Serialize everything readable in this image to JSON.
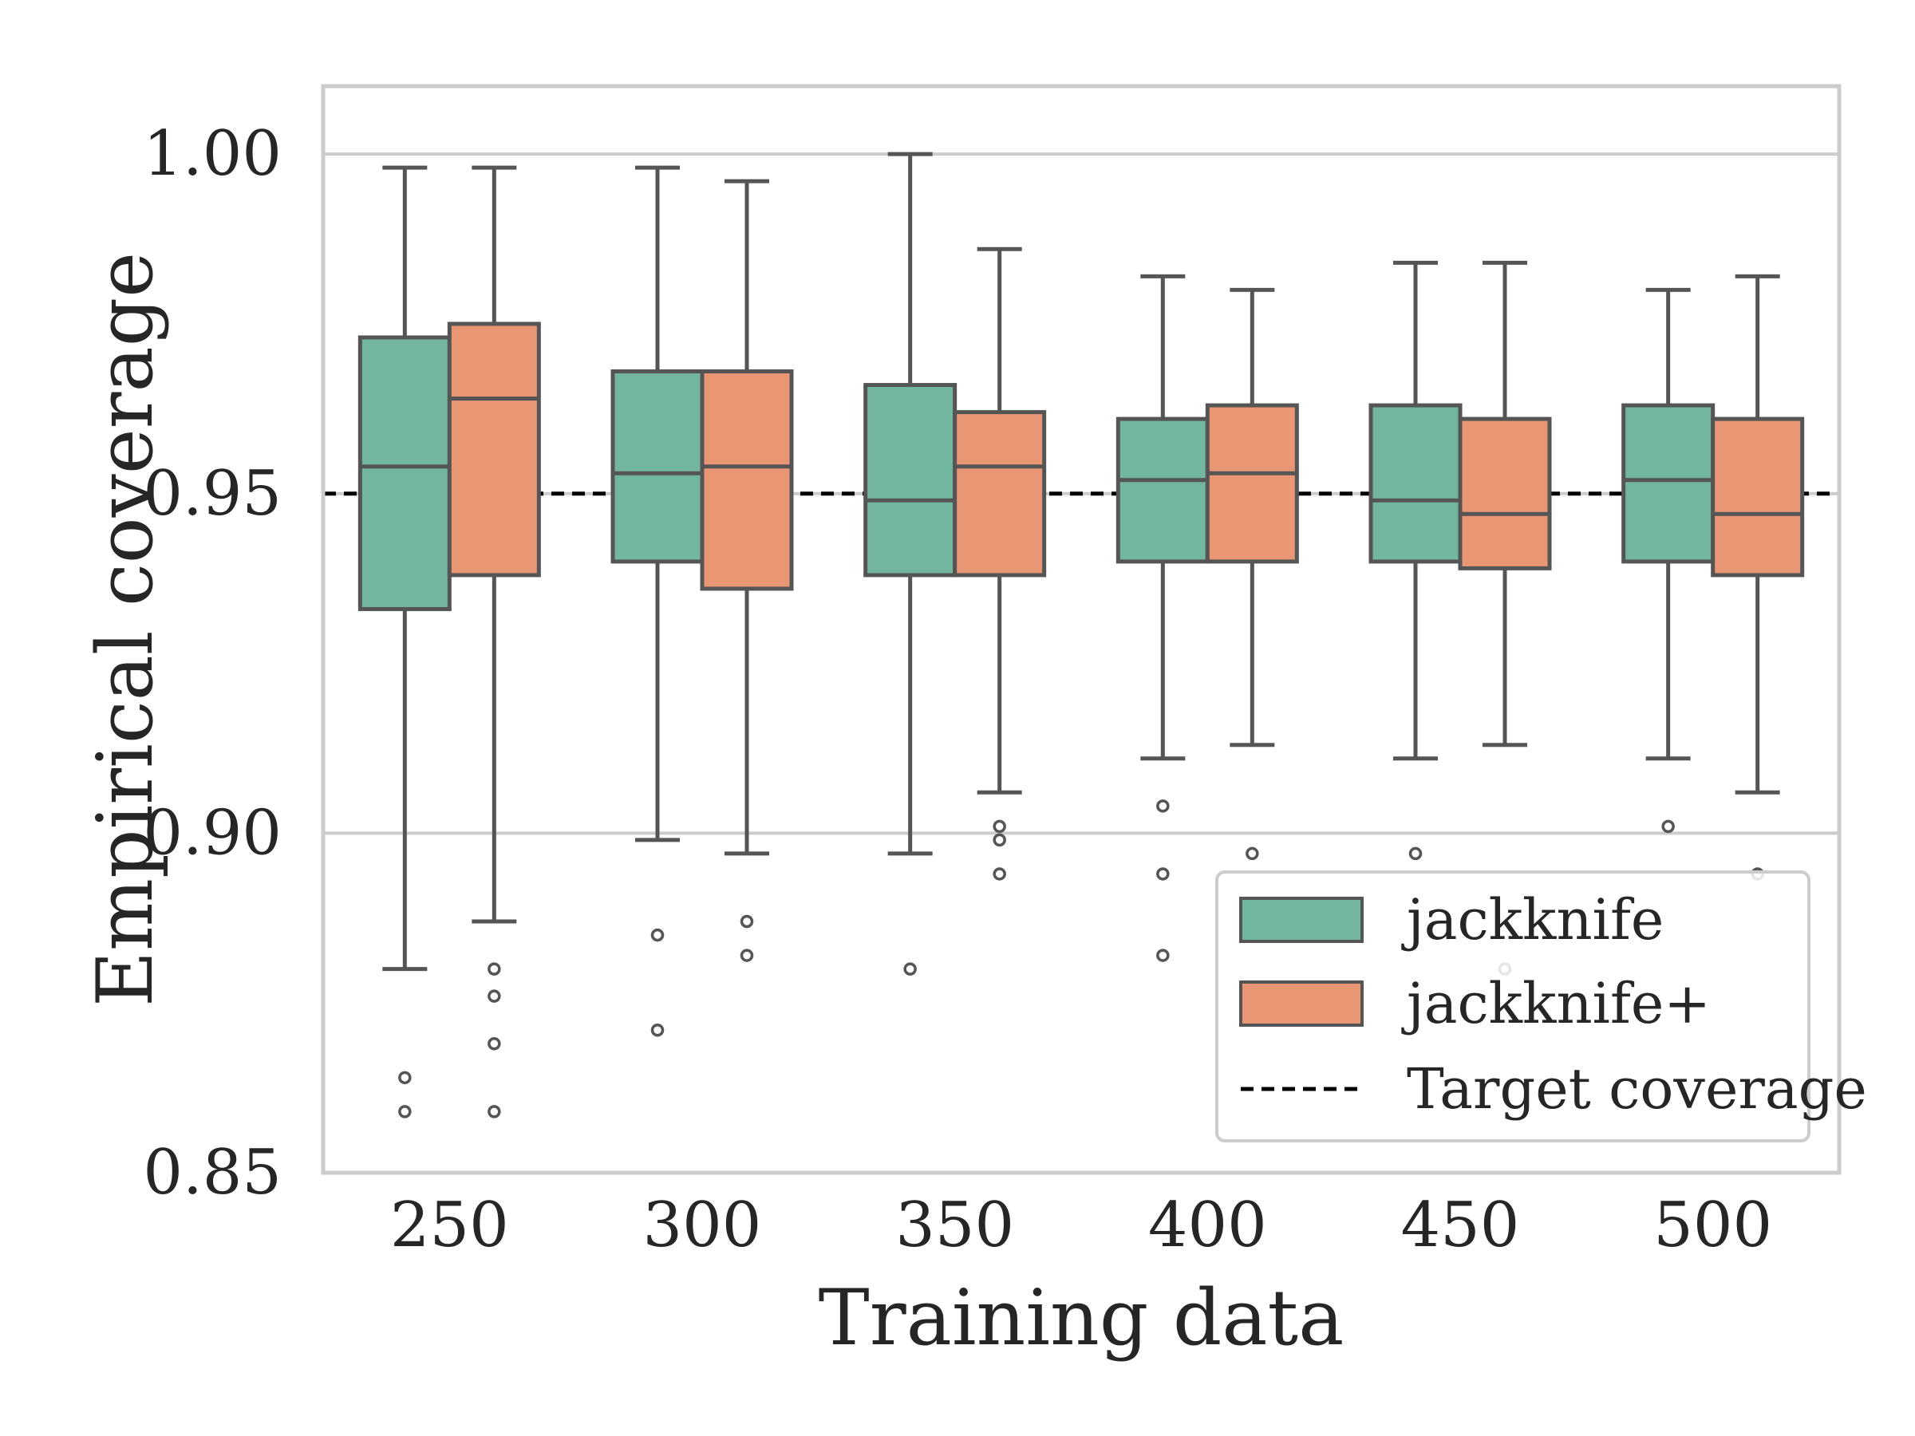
{
  "chart_data": {
    "type": "box",
    "title": "",
    "xlabel": "Training data",
    "ylabel": "Empirical coverage",
    "categories": [
      "250",
      "300",
      "350",
      "400",
      "450",
      "500"
    ],
    "ylim": [
      0.85,
      1.01
    ],
    "yticks": [
      "0.85",
      "0.90",
      "0.95",
      "1.00"
    ],
    "grid": "horizontal",
    "legend_position": "lower-right",
    "target": {
      "name": "Target coverage",
      "value": 0.95,
      "color": "#000000"
    },
    "series": [
      {
        "name": "jackknife",
        "color": "#72b6a0",
        "boxes": [
          {
            "whislo": 0.88,
            "q1": 0.933,
            "med": 0.954,
            "q3": 0.973,
            "whishi": 0.998,
            "fliers": [
              0.864,
              0.859
            ]
          },
          {
            "whislo": 0.899,
            "q1": 0.94,
            "med": 0.953,
            "q3": 0.968,
            "whishi": 0.998,
            "fliers": [
              0.885,
              0.871
            ]
          },
          {
            "whislo": 0.897,
            "q1": 0.938,
            "med": 0.949,
            "q3": 0.966,
            "whishi": 1.0,
            "fliers": [
              0.88
            ]
          },
          {
            "whislo": 0.911,
            "q1": 0.94,
            "med": 0.952,
            "q3": 0.961,
            "whishi": 0.982,
            "fliers": [
              0.904,
              0.894,
              0.882
            ]
          },
          {
            "whislo": 0.911,
            "q1": 0.94,
            "med": 0.949,
            "q3": 0.963,
            "whishi": 0.984,
            "fliers": [
              0.897
            ]
          },
          {
            "whislo": 0.911,
            "q1": 0.94,
            "med": 0.952,
            "q3": 0.963,
            "whishi": 0.98,
            "fliers": [
              0.901
            ]
          }
        ]
      },
      {
        "name": "jackknife+",
        "color": "#e99675",
        "boxes": [
          {
            "whislo": 0.887,
            "q1": 0.938,
            "med": 0.964,
            "q3": 0.975,
            "whishi": 0.998,
            "fliers": [
              0.88,
              0.876,
              0.869,
              0.859
            ]
          },
          {
            "whislo": 0.897,
            "q1": 0.936,
            "med": 0.954,
            "q3": 0.968,
            "whishi": 0.996,
            "fliers": [
              0.887,
              0.882
            ]
          },
          {
            "whislo": 0.906,
            "q1": 0.938,
            "med": 0.954,
            "q3": 0.962,
            "whishi": 0.986,
            "fliers": [
              0.901,
              0.899,
              0.894
            ]
          },
          {
            "whislo": 0.913,
            "q1": 0.94,
            "med": 0.953,
            "q3": 0.963,
            "whishi": 0.98,
            "fliers": [
              0.897
            ]
          },
          {
            "whislo": 0.913,
            "q1": 0.939,
            "med": 0.947,
            "q3": 0.961,
            "whishi": 0.984,
            "fliers": [
              0.88
            ]
          },
          {
            "whislo": 0.906,
            "q1": 0.938,
            "med": 0.947,
            "q3": 0.961,
            "whishi": 0.982,
            "fliers": [
              0.894
            ]
          }
        ]
      }
    ]
  }
}
